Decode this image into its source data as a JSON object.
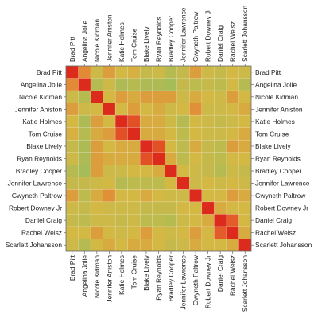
{
  "chart_data": {
    "type": "heatmap",
    "title": "",
    "labels": [
      "Brad Pitt",
      "Angelina Jolie",
      "Nicole Kidman",
      "Jennifer Aniston",
      "Katie Holmes",
      "Tom Cruise",
      "Blake Lively",
      "Ryan Reynolds",
      "Bradley Cooper",
      "Jennifer Lawrence",
      "Gwyneth Paltrow",
      "Robert Downey Jr",
      "Daniel Craig",
      "Rachel Weisz",
      "Scarlett Johansson"
    ],
    "matrix": [
      [
        1.0,
        0.62,
        0.4,
        0.55,
        0.45,
        0.48,
        0.35,
        0.4,
        0.25,
        0.35,
        0.55,
        0.4,
        0.35,
        0.45,
        0.4
      ],
      [
        0.62,
        1.0,
        0.25,
        0.4,
        0.2,
        0.25,
        0.2,
        0.2,
        0.15,
        0.35,
        0.3,
        0.35,
        0.3,
        0.45,
        0.25
      ],
      [
        0.4,
        0.25,
        1.0,
        0.45,
        0.55,
        0.5,
        0.55,
        0.55,
        0.55,
        0.4,
        0.5,
        0.45,
        0.4,
        0.55,
        0.45
      ],
      [
        0.55,
        0.4,
        0.45,
        1.0,
        0.45,
        0.55,
        0.45,
        0.5,
        0.4,
        0.45,
        0.6,
        0.4,
        0.4,
        0.45,
        0.5
      ],
      [
        0.45,
        0.2,
        0.55,
        0.45,
        1.0,
        0.85,
        0.5,
        0.5,
        0.4,
        0.25,
        0.45,
        0.4,
        0.35,
        0.4,
        0.45
      ],
      [
        0.48,
        0.25,
        0.5,
        0.55,
        0.85,
        1.0,
        0.5,
        0.5,
        0.45,
        0.3,
        0.45,
        0.4,
        0.4,
        0.45,
        0.5
      ],
      [
        0.35,
        0.2,
        0.55,
        0.45,
        0.5,
        0.5,
        1.0,
        0.85,
        0.45,
        0.3,
        0.5,
        0.35,
        0.3,
        0.55,
        0.5
      ],
      [
        0.4,
        0.2,
        0.55,
        0.5,
        0.5,
        0.5,
        0.85,
        1.0,
        0.5,
        0.3,
        0.45,
        0.35,
        0.3,
        0.45,
        0.45
      ],
      [
        0.25,
        0.15,
        0.55,
        0.4,
        0.4,
        0.45,
        0.45,
        0.5,
        1.0,
        0.45,
        0.4,
        0.35,
        0.25,
        0.4,
        0.35
      ],
      [
        0.35,
        0.35,
        0.4,
        0.45,
        0.25,
        0.3,
        0.3,
        0.3,
        0.45,
        1.0,
        0.4,
        0.45,
        0.4,
        0.45,
        0.4
      ],
      [
        0.55,
        0.3,
        0.5,
        0.6,
        0.45,
        0.45,
        0.5,
        0.45,
        0.4,
        0.4,
        1.0,
        0.45,
        0.45,
        0.55,
        0.5
      ],
      [
        0.4,
        0.35,
        0.45,
        0.4,
        0.4,
        0.4,
        0.35,
        0.35,
        0.35,
        0.45,
        0.45,
        1.0,
        0.5,
        0.45,
        0.45
      ],
      [
        0.35,
        0.3,
        0.4,
        0.4,
        0.35,
        0.4,
        0.3,
        0.3,
        0.25,
        0.4,
        0.45,
        0.5,
        1.0,
        0.8,
        0.45
      ],
      [
        0.45,
        0.45,
        0.55,
        0.45,
        0.4,
        0.45,
        0.55,
        0.45,
        0.4,
        0.45,
        0.55,
        0.45,
        0.8,
        1.0,
        0.5
      ],
      [
        0.4,
        0.25,
        0.45,
        0.5,
        0.45,
        0.5,
        0.5,
        0.45,
        0.35,
        0.4,
        0.5,
        0.45,
        0.45,
        0.5,
        1.0
      ]
    ],
    "color_scale": {
      "low": "#8fbe62",
      "mid": "#d4b844",
      "high": "#e8752f",
      "max": "#dc2a1c",
      "domain": [
        0,
        1
      ]
    },
    "grid": true,
    "legend": "none"
  }
}
